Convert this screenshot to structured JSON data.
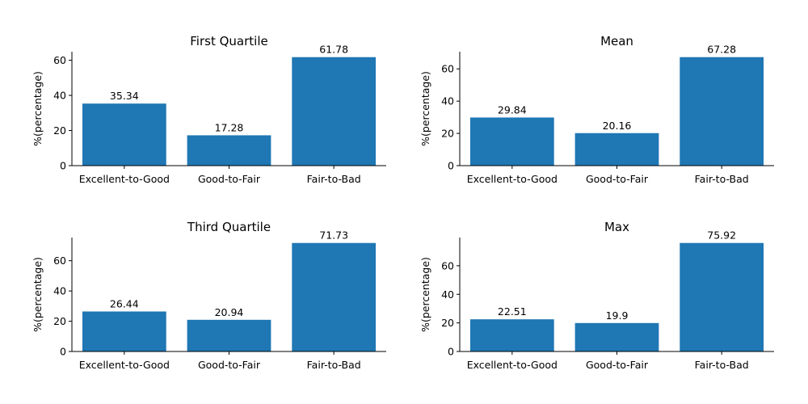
{
  "chart_data": [
    {
      "type": "bar",
      "title": "First Quartile",
      "ylabel": "%(percentage)",
      "xlabel": "",
      "categories": [
        "Excellent-to-Good",
        "Good-to-Fair",
        "Fair-to-Bad"
      ],
      "values": [
        35.34,
        17.28,
        61.78
      ],
      "value_labels": [
        "35.34",
        "17.28",
        "61.78"
      ],
      "ylim": [
        0,
        64.87
      ],
      "yticks": [
        0,
        20,
        40,
        60
      ],
      "ytick_labels": [
        "0",
        "20",
        "40",
        "60"
      ],
      "grid": false,
      "bar_color": "#1f77b4"
    },
    {
      "type": "bar",
      "title": "Mean",
      "ylabel": "%(percentage)",
      "xlabel": "",
      "categories": [
        "Excellent-to-Good",
        "Good-to-Fair",
        "Fair-to-Bad"
      ],
      "values": [
        29.84,
        20.16,
        67.28
      ],
      "value_labels": [
        "29.84",
        "20.16",
        "67.28"
      ],
      "ylim": [
        0,
        70.64
      ],
      "yticks": [
        0,
        20,
        40,
        60
      ],
      "ytick_labels": [
        "0",
        "20",
        "40",
        "60"
      ],
      "grid": false,
      "bar_color": "#1f77b4"
    },
    {
      "type": "bar",
      "title": "Third Quartile",
      "ylabel": "%(percentage)",
      "xlabel": "",
      "categories": [
        "Excellent-to-Good",
        "Good-to-Fair",
        "Fair-to-Bad"
      ],
      "values": [
        26.44,
        20.94,
        71.73
      ],
      "value_labels": [
        "26.44",
        "20.94",
        "71.73"
      ],
      "ylim": [
        0,
        75.32
      ],
      "yticks": [
        0,
        20,
        40,
        60
      ],
      "ytick_labels": [
        "0",
        "20",
        "40",
        "60"
      ],
      "grid": false,
      "bar_color": "#1f77b4"
    },
    {
      "type": "bar",
      "title": "Max",
      "ylabel": "%(percentage)",
      "xlabel": "",
      "categories": [
        "Excellent-to-Good",
        "Good-to-Fair",
        "Fair-to-Bad"
      ],
      "values": [
        22.51,
        19.9,
        75.92
      ],
      "value_labels": [
        "22.51",
        "19.9",
        "75.92"
      ],
      "ylim": [
        0,
        79.72
      ],
      "yticks": [
        0,
        20,
        40,
        60
      ],
      "ytick_labels": [
        "0",
        "20",
        "40",
        "60"
      ],
      "grid": false,
      "bar_color": "#1f77b4"
    }
  ]
}
